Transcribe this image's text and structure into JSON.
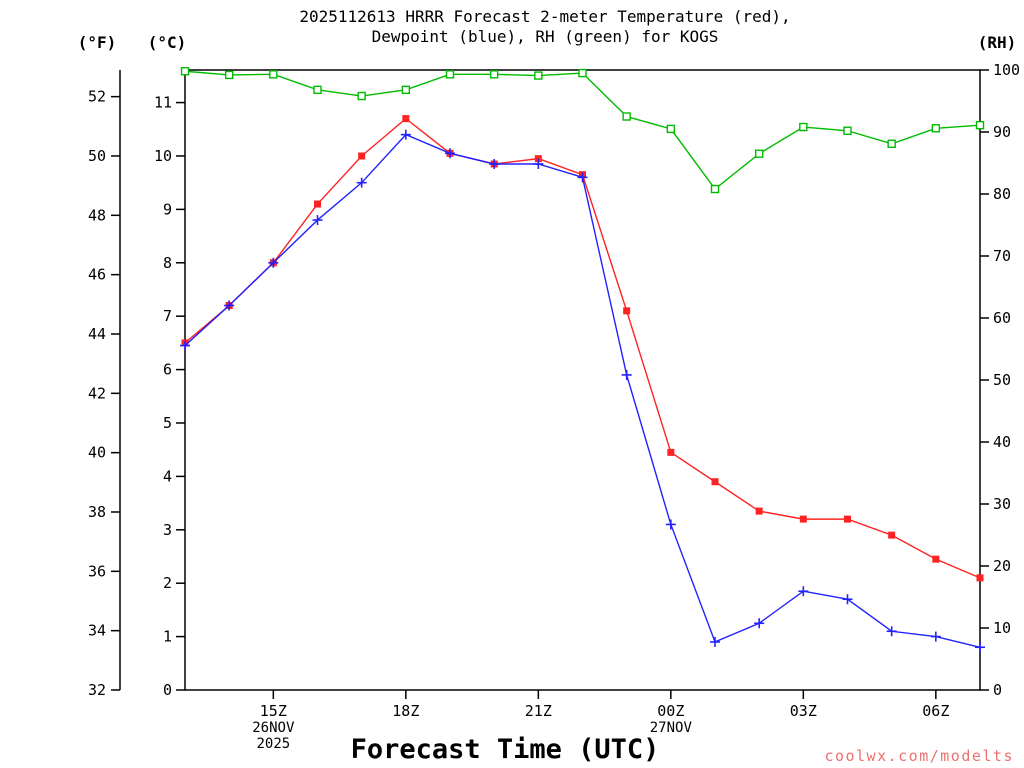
{
  "chart_data": {
    "type": "line",
    "title_line1": "2025112613 HRRR Forecast 2-meter Temperature (red),",
    "title_line2": "Dewpoint (blue), RH (green) for KOGS",
    "xlabel": "Forecast Time (UTC)",
    "grid": false,
    "x_points": [
      "13Z",
      "14Z",
      "15Z",
      "16Z",
      "17Z",
      "18Z",
      "19Z",
      "20Z",
      "21Z",
      "22Z",
      "23Z",
      "00Z",
      "01Z",
      "02Z",
      "03Z",
      "04Z",
      "05Z",
      "06Z",
      "07Z"
    ],
    "x_ticks": [
      {
        "label": "15Z",
        "index": 2
      },
      {
        "label": "18Z",
        "index": 5
      },
      {
        "label": "21Z",
        "index": 8
      },
      {
        "label": "00Z",
        "index": 11
      },
      {
        "label": "03Z",
        "index": 14
      },
      {
        "label": "06Z",
        "index": 17
      }
    ],
    "x_date_labels": [
      {
        "text": "26NOV",
        "index": 2,
        "row": 1
      },
      {
        "text": "2025",
        "index": 2,
        "row": 2
      },
      {
        "text": "27NOV",
        "index": 11,
        "row": 1
      }
    ],
    "axes": {
      "fahrenheit": {
        "unit_label": "(°F)",
        "ticks": [
          32,
          34,
          36,
          38,
          40,
          42,
          44,
          46,
          48,
          50,
          52
        ]
      },
      "celsius": {
        "unit_label": "(°C)",
        "min": 0,
        "max": 11.61,
        "ticks": [
          0,
          1,
          2,
          3,
          4,
          5,
          6,
          7,
          8,
          9,
          10,
          11
        ]
      },
      "rh": {
        "unit_label": "(RH)",
        "min": 0,
        "max": 100,
        "ticks": [
          0,
          10,
          20,
          30,
          40,
          50,
          60,
          70,
          80,
          90,
          100
        ]
      }
    },
    "series": [
      {
        "name": "temperature",
        "label": "2-meter Temperature",
        "color": "#ff2222",
        "axis": "celsius",
        "marker": "filled-square",
        "values": [
          6.5,
          7.2,
          8.0,
          9.1,
          10.0,
          10.7,
          10.05,
          9.85,
          9.95,
          9.65,
          7.1,
          4.45,
          3.9,
          3.35,
          3.2,
          3.2,
          2.9,
          2.45,
          2.1
        ]
      },
      {
        "name": "dewpoint",
        "label": "Dewpoint",
        "color": "#2222ff",
        "axis": "celsius",
        "marker": "plus",
        "values": [
          6.45,
          7.2,
          8.0,
          8.8,
          9.5,
          10.4,
          10.05,
          9.85,
          9.85,
          9.6,
          5.9,
          3.1,
          0.9,
          1.25,
          1.85,
          1.7,
          1.1,
          1.0,
          0.8
        ]
      },
      {
        "name": "rh",
        "label": "RH",
        "color": "#00bb00",
        "axis": "rh",
        "marker": "open-square",
        "values": [
          99.8,
          99.2,
          99.3,
          96.8,
          95.8,
          96.8,
          99.3,
          99.3,
          99.1,
          99.5,
          92.5,
          90.5,
          80.8,
          86.5,
          90.8,
          90.2,
          88.1,
          90.6,
          91.1
        ]
      }
    ]
  },
  "footer": {
    "watermark": "coolwx.com/modelts"
  }
}
